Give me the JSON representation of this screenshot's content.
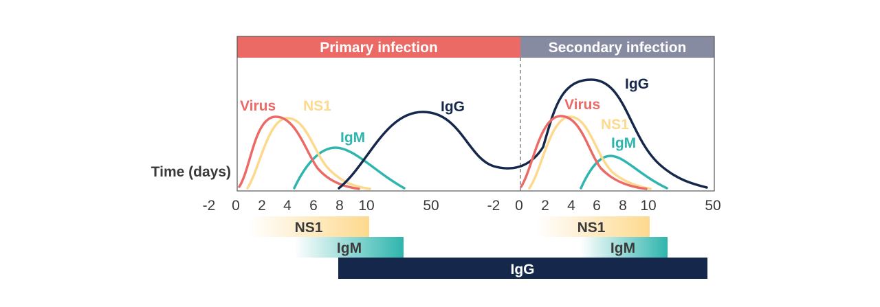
{
  "phases": {
    "primary": {
      "label": "Primary infection",
      "color": "#EC6A66"
    },
    "secondary": {
      "label": "Secondary infection",
      "color": "#878BA2"
    }
  },
  "axis": {
    "label": "Time (days)",
    "ticks": [
      "-2",
      "0",
      "2",
      "4",
      "6",
      "8",
      "10",
      "50",
      "-2",
      "0",
      "2",
      "4",
      "6",
      "8",
      "10",
      "50"
    ]
  },
  "curve_labels": {
    "primary": {
      "virus": "Virus",
      "ns1": "NS1",
      "igm": "IgM",
      "igg": "IgG"
    },
    "secondary": {
      "igg": "IgG",
      "virus": "Virus",
      "ns1": "NS1",
      "igm": "IgM"
    }
  },
  "colors": {
    "virus": "#EC6A66",
    "ns1": "#FDD98E",
    "igm": "#2EB5AD",
    "igg": "#15284B",
    "text": "#3A3A3A"
  },
  "windows": {
    "primary": {
      "ns1": "NS1",
      "igm": "IgM"
    },
    "secondary": {
      "ns1": "NS1",
      "igm": "IgM"
    },
    "igg": "IgG"
  }
}
